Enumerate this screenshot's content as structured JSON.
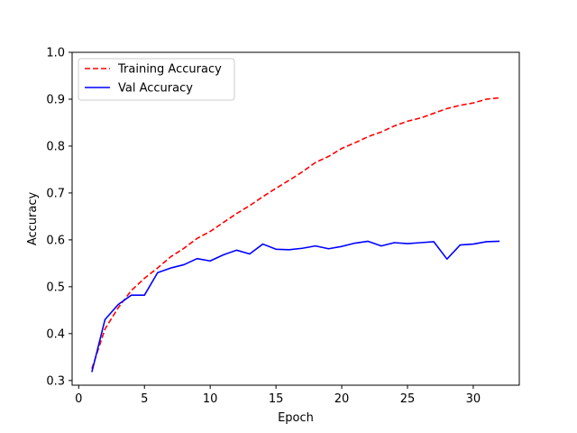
{
  "chart_data": {
    "type": "line",
    "xlabel": "Epoch",
    "ylabel": "Accuracy",
    "xlim": [
      -0.5,
      33.5
    ],
    "ylim": [
      0.29,
      1.0
    ],
    "xticks": [
      0,
      5,
      10,
      15,
      20,
      25,
      30
    ],
    "yticks": [
      0.3,
      0.4,
      0.5,
      0.6,
      0.7,
      0.8,
      0.9,
      1.0
    ],
    "grid": false,
    "legend_position": "top-left",
    "series": [
      {
        "name": "Training Accuracy",
        "color": "#ff0000",
        "style": "dashed",
        "x": [
          1,
          2,
          3,
          4,
          5,
          6,
          7,
          8,
          9,
          10,
          11,
          12,
          13,
          14,
          15,
          16,
          17,
          18,
          19,
          20,
          21,
          22,
          23,
          24,
          25,
          26,
          27,
          28,
          29,
          30,
          31,
          32
        ],
        "values": [
          0.325,
          0.41,
          0.455,
          0.492,
          0.518,
          0.54,
          0.564,
          0.582,
          0.603,
          0.618,
          0.637,
          0.656,
          0.673,
          0.692,
          0.71,
          0.727,
          0.745,
          0.765,
          0.778,
          0.795,
          0.807,
          0.82,
          0.83,
          0.843,
          0.853,
          0.86,
          0.87,
          0.88,
          0.887,
          0.892,
          0.9,
          0.903
        ]
      },
      {
        "name": "Val Accuracy",
        "color": "#0000ff",
        "style": "solid",
        "x": [
          1,
          2,
          3,
          4,
          5,
          6,
          7,
          8,
          9,
          10,
          11,
          12,
          13,
          14,
          15,
          16,
          17,
          18,
          19,
          20,
          21,
          22,
          23,
          24,
          25,
          26,
          27,
          28,
          29,
          30,
          31,
          32
        ],
        "values": [
          0.318,
          0.43,
          0.462,
          0.482,
          0.482,
          0.53,
          0.54,
          0.547,
          0.56,
          0.555,
          0.568,
          0.578,
          0.57,
          0.591,
          0.58,
          0.579,
          0.582,
          0.587,
          0.581,
          0.586,
          0.593,
          0.597,
          0.587,
          0.594,
          0.592,
          0.594,
          0.596,
          0.559,
          0.589,
          0.591,
          0.596,
          0.597
        ]
      }
    ]
  }
}
